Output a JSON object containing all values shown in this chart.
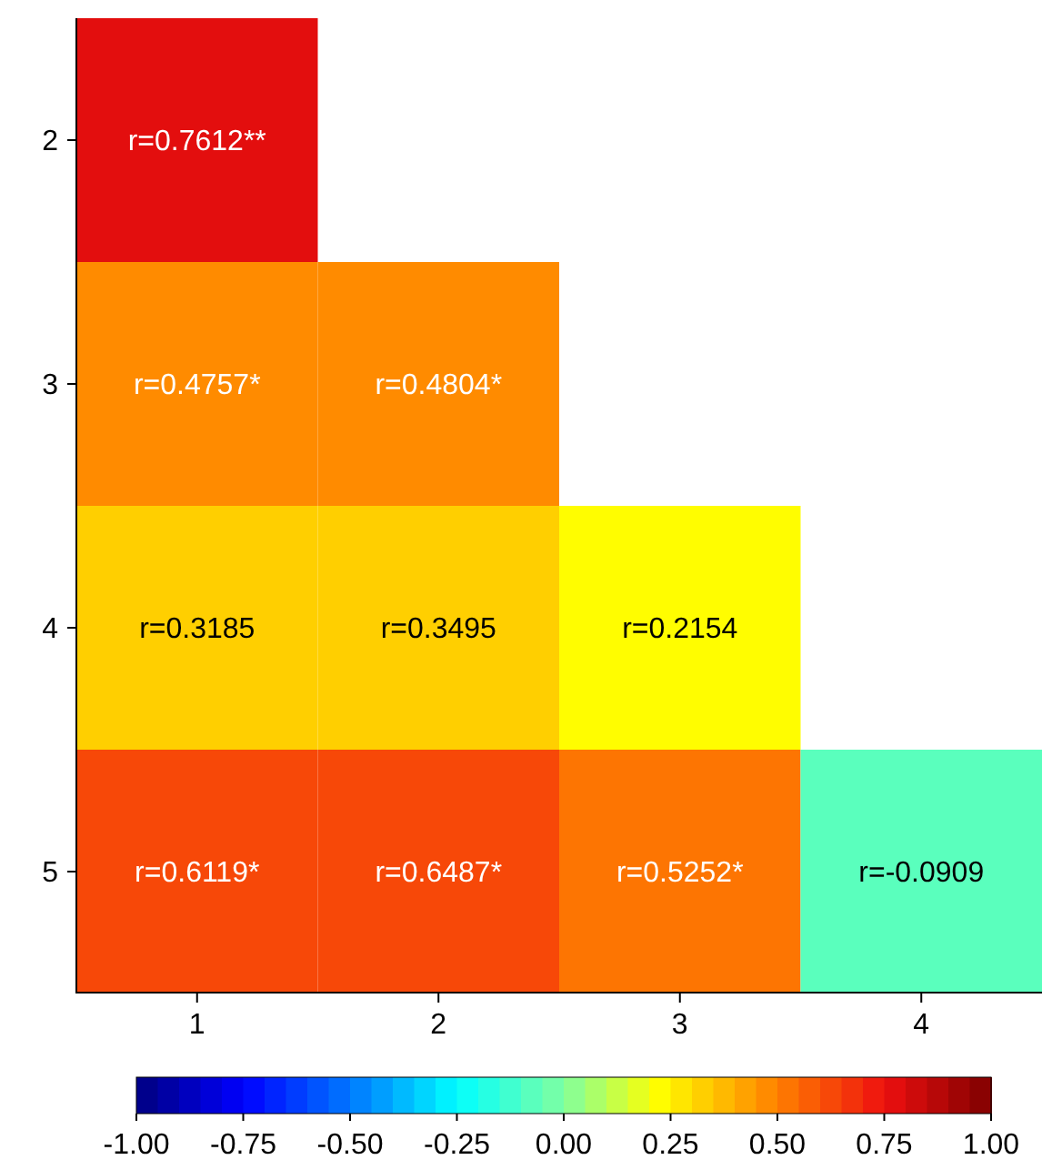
{
  "chart_data": {
    "type": "heatmap",
    "categories": [
      "1",
      "2",
      "3",
      "4"
    ],
    "y_categories": [
      "2",
      "3",
      "4",
      "5"
    ],
    "cells": [
      [
        0.7612,
        null,
        null,
        null
      ],
      [
        0.4757,
        0.4804,
        null,
        null
      ],
      [
        0.3185,
        0.3495,
        0.2154,
        null
      ],
      [
        0.6119,
        0.6487,
        0.5252,
        -0.0909
      ]
    ],
    "cell_labels": [
      [
        "r=0.7612**",
        null,
        null,
        null
      ],
      [
        "r=0.4757*",
        "r=0.4804*",
        null,
        null
      ],
      [
        "r=0.3185",
        "r=0.3495",
        "r=0.2154",
        null
      ],
      [
        "r=0.6119*",
        "r=0.6487*",
        "r=0.5252*",
        "r=-0.0909"
      ]
    ],
    "clim": [
      -1,
      1
    ],
    "cticks": [
      {
        "value": -1,
        "label": "-1.00"
      },
      {
        "value": -0.75,
        "label": "-0.75"
      },
      {
        "value": -0.5,
        "label": "-0.50"
      },
      {
        "value": -0.25,
        "label": "-0.25"
      },
      {
        "value": 0,
        "label": "0.00"
      },
      {
        "value": 0.25,
        "label": "0.25"
      },
      {
        "value": 0.5,
        "label": "0.50"
      },
      {
        "value": 0.75,
        "label": "0.75"
      },
      {
        "value": 1,
        "label": "1.00"
      }
    ]
  }
}
